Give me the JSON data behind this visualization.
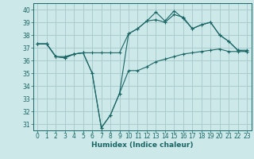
{
  "xlabel": "Humidex (Indice chaleur)",
  "background_color": "#cde8e8",
  "grid_color": "#aacccc",
  "line_color": "#1a6666",
  "xlim": [
    -0.5,
    23.5
  ],
  "ylim": [
    30.5,
    40.5
  ],
  "yticks": [
    31,
    32,
    33,
    34,
    35,
    36,
    37,
    38,
    39,
    40
  ],
  "xticks": [
    0,
    1,
    2,
    3,
    4,
    5,
    6,
    7,
    8,
    9,
    10,
    11,
    12,
    13,
    14,
    15,
    16,
    17,
    18,
    19,
    20,
    21,
    22,
    23
  ],
  "line1_x": [
    0,
    1,
    2,
    3,
    4,
    5,
    6,
    7,
    8,
    9,
    10,
    11,
    12,
    13,
    14,
    15,
    16,
    17,
    18,
    19,
    20,
    21,
    22,
    23
  ],
  "line1_y": [
    37.3,
    37.3,
    36.3,
    36.2,
    36.5,
    36.6,
    35.0,
    30.7,
    31.7,
    33.4,
    35.2,
    35.2,
    35.5,
    35.9,
    36.1,
    36.3,
    36.5,
    36.6,
    36.7,
    36.8,
    36.9,
    36.7,
    36.7,
    36.7
  ],
  "line2_x": [
    0,
    1,
    2,
    3,
    4,
    5,
    6,
    7,
    8,
    9,
    10,
    11,
    12,
    13,
    14,
    15,
    16,
    17,
    18,
    19,
    20,
    21,
    22,
    23
  ],
  "line2_y": [
    37.3,
    37.3,
    36.3,
    36.3,
    36.5,
    36.6,
    36.6,
    36.6,
    36.6,
    36.6,
    38.1,
    38.5,
    39.1,
    39.2,
    39.0,
    39.6,
    39.4,
    38.5,
    38.8,
    39.0,
    38.0,
    37.5,
    36.8,
    36.8
  ],
  "line3_x": [
    0,
    1,
    2,
    3,
    4,
    5,
    6,
    7,
    8,
    9,
    10,
    11,
    12,
    13,
    14,
    15,
    16,
    17,
    18,
    19,
    20,
    21,
    22,
    23
  ],
  "line3_y": [
    37.3,
    37.3,
    36.3,
    36.2,
    36.5,
    36.6,
    35.0,
    30.7,
    31.7,
    33.4,
    38.1,
    38.5,
    39.1,
    39.8,
    39.1,
    39.9,
    39.3,
    38.5,
    38.8,
    39.0,
    38.0,
    37.5,
    36.8,
    36.7
  ],
  "tick_fontsize": 5.5,
  "xlabel_fontsize": 6.5
}
